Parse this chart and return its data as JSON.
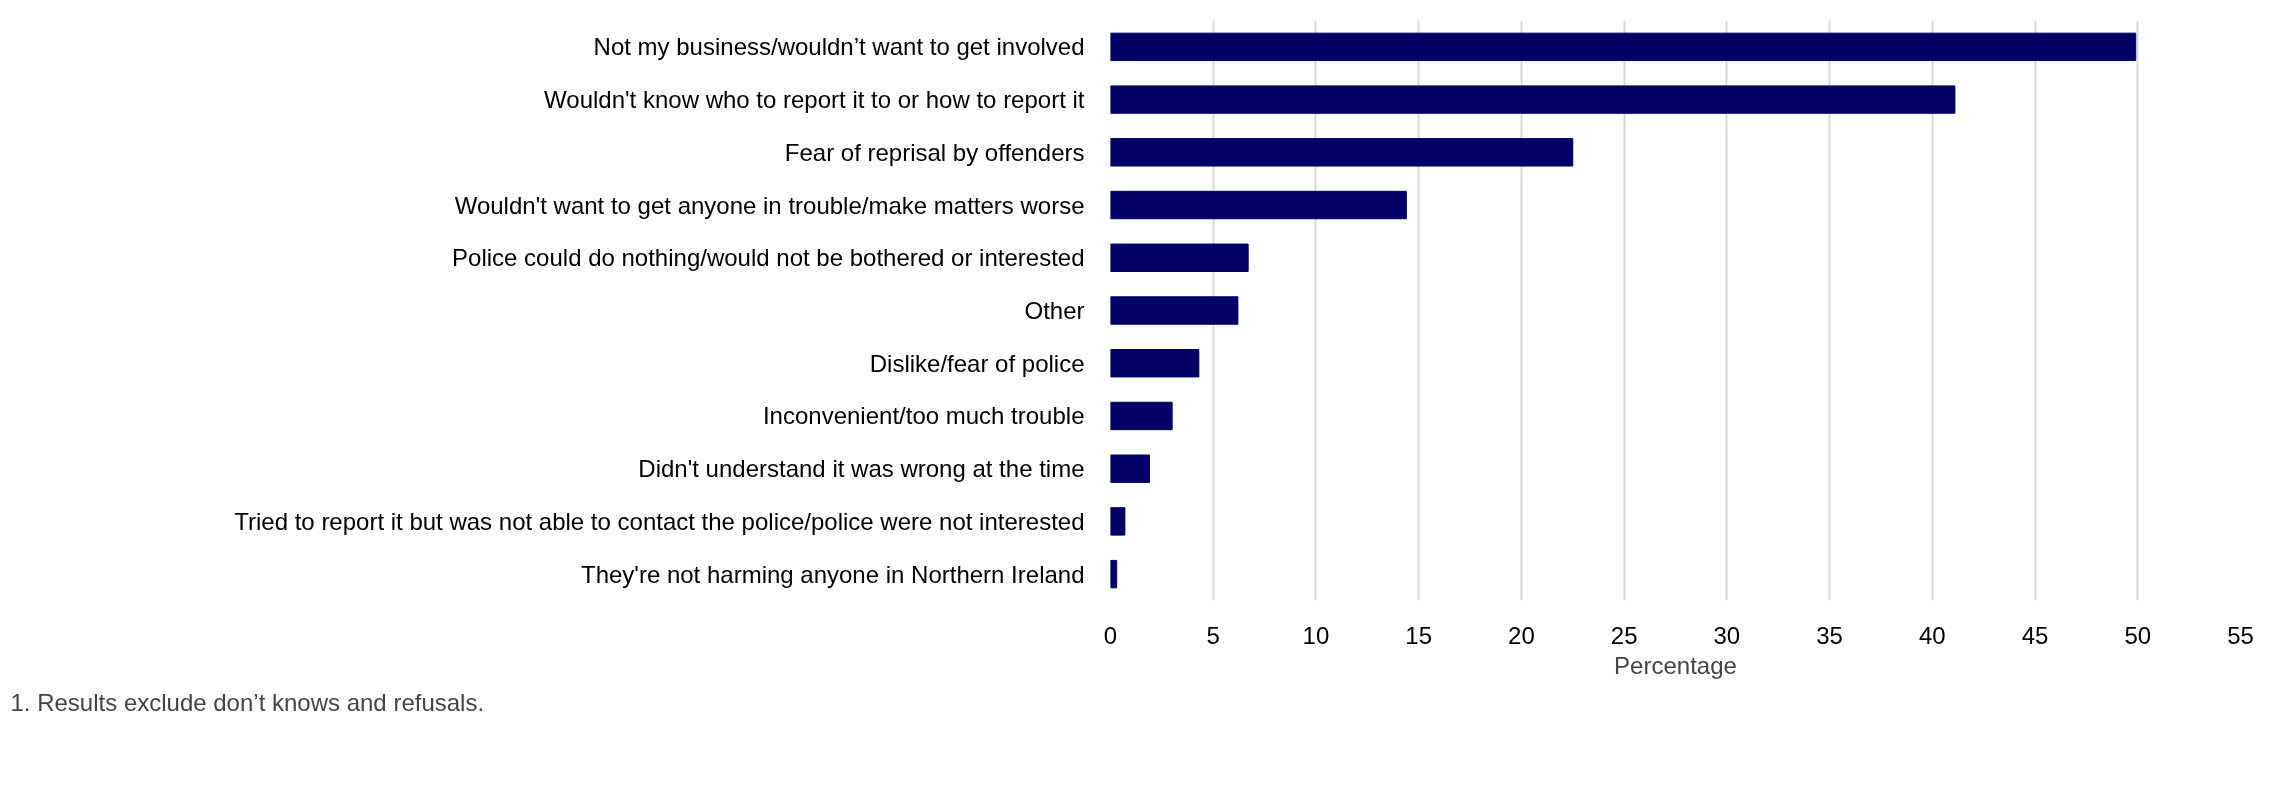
{
  "chart_data": {
    "type": "bar",
    "orientation": "horizontal",
    "categories": [
      "Not my business/wouldn’t want to get involved",
      "Wouldn't know who to report it to or how to report it",
      "Fear of reprisal by offenders",
      "Wouldn't want to get anyone in trouble/make matters worse",
      "Police could do nothing/would not be bothered or interested",
      "Other",
      "Dislike/fear of police",
      "Inconvenient/too much trouble",
      "Didn't understand it was wrong at the time",
      "Tried to report it but was not able to contact the police/police were not interested",
      "They're not harming anyone in Northern Ireland"
    ],
    "values": [
      49.9,
      41.1,
      22.5,
      14.4,
      6.7,
      6.2,
      4.3,
      3.0,
      1.9,
      0.7,
      0.3
    ],
    "color": "#000066",
    "xlim": [
      0,
      55
    ],
    "xticks": [
      0,
      5,
      10,
      15,
      20,
      25,
      30,
      35,
      40,
      45,
      50,
      55
    ],
    "xlabel": "Percentage",
    "grid": "x",
    "annotations": [
      "1. Results exclude don’t knows and refusals."
    ]
  }
}
